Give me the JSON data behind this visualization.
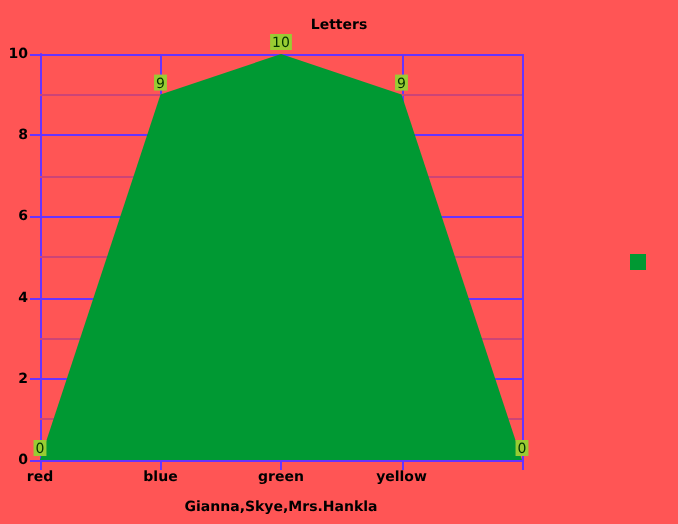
{
  "chart_data": {
    "type": "area",
    "title": "Letters",
    "xlabel": "Gianna,Skye,Mrs.Hankla",
    "categories": [
      "red",
      "blue",
      "green",
      "yellow",
      null
    ],
    "series": [
      {
        "color": "#009933",
        "values": [
          0,
          9,
          10,
          9,
          0
        ]
      }
    ],
    "ylim": [
      0,
      10
    ],
    "yticks": [
      0,
      {
        "value": 1,
        "label": null
      },
      2,
      {
        "value": 3,
        "label": null
      },
      4,
      {
        "value": 5,
        "label": null
      },
      6,
      {
        "value": 7,
        "label": null
      },
      8,
      {
        "value": 9,
        "label": null
      },
      10
    ],
    "grid": true,
    "data_labels": true
  }
}
